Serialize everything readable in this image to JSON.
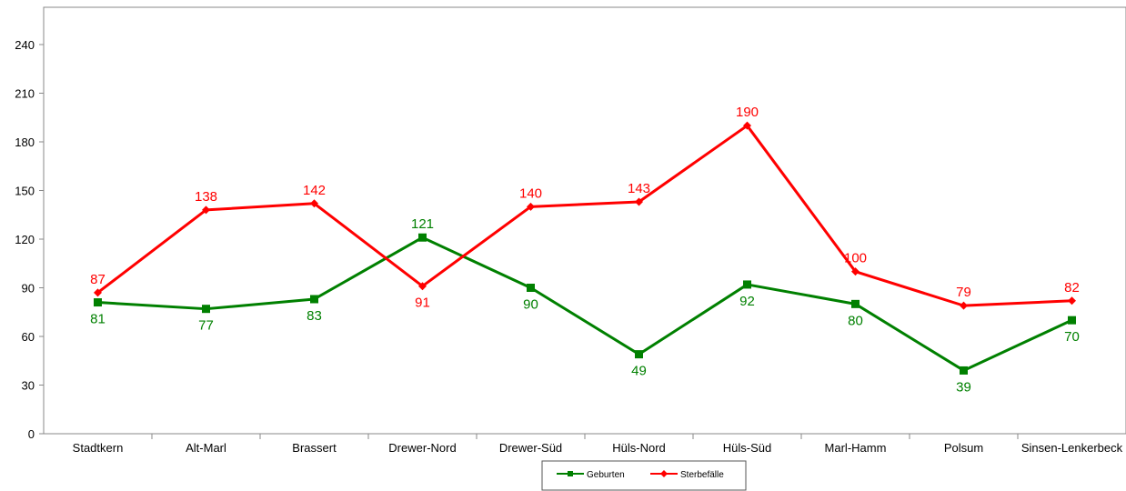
{
  "chart_data": {
    "type": "line",
    "title": "",
    "xlabel": "",
    "ylabel": "",
    "categories": [
      "Stadtkern",
      "Alt-Marl",
      "Brassert",
      "Drewer-Nord",
      "Drewer-Süd",
      "Hüls-Nord",
      "Hüls-Süd",
      "Marl-Hamm",
      "Polsum",
      "Sinsen-Lenkerbeck"
    ],
    "yticks": [
      "0",
      "30",
      "60",
      "90",
      "120",
      "150",
      "180",
      "210",
      "240"
    ],
    "ylim": [
      0,
      263
    ],
    "grid": false,
    "legend_position": "bottom-center",
    "series": [
      {
        "name": "Geburten",
        "color": "#008000",
        "marker": "square",
        "values": [
          81,
          77,
          83,
          121,
          90,
          49,
          92,
          80,
          39,
          70
        ],
        "labels": [
          "81",
          "77",
          "83",
          "121",
          "90",
          "49",
          "92",
          "80",
          "39",
          "70"
        ]
      },
      {
        "name": "Sterbefälle",
        "color": "#ff0000",
        "marker": "diamond",
        "values": [
          87,
          138,
          142,
          91,
          140,
          143,
          190,
          100,
          79,
          82
        ],
        "labels": [
          "87",
          "138",
          "142",
          "91",
          "140",
          "143",
          "190",
          "100",
          "79",
          "82"
        ]
      }
    ]
  }
}
